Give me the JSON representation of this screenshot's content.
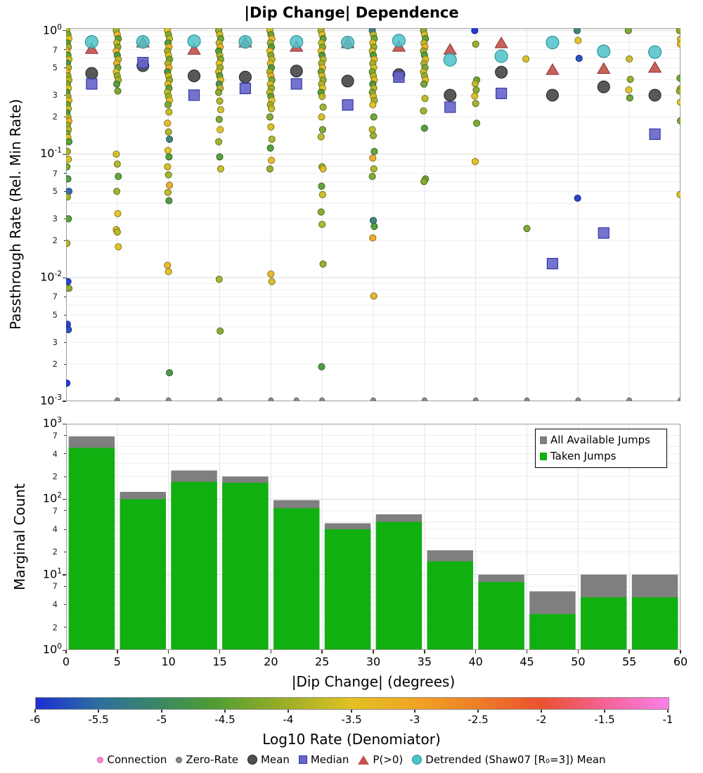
{
  "title": "|Dip Change| Dependence",
  "chart_data": [
    {
      "type": "scatter",
      "title": "|Dip Change| Dependence",
      "ylabel": "Passthrough Rate (Rel. Min Rate)",
      "xlabel": "",
      "xlim": [
        0,
        60
      ],
      "ylog": true,
      "ylim": [
        0.001,
        1.0
      ],
      "x_grid_step": 5,
      "y_major_exponents": [
        0,
        -1,
        -2,
        -3
      ],
      "y_minor_tick_labels": [
        7,
        5,
        3,
        2
      ],
      "marker_colors": {
        "mean": "#4f4f4f",
        "mean_edge": "#1f1f1f",
        "median": "#6565cb",
        "median_edge": "#3737a3",
        "p_gt0": "#c3524e",
        "p_gt0_edge": "#8e2f2c",
        "detrended": "#4ec2c9",
        "detrended_edge": "#2b8f96",
        "zero_rate": "#8a8a8a",
        "zero_rate_edge": "#555555"
      },
      "series": {
        "connections": [
          {
            "x": 0,
            "y": [
              1.0,
              0.927,
              0.859,
              0.794,
              0.736,
              0.682,
              0.631,
              0.585,
              0.542,
              0.501,
              0.464,
              0.43,
              0.398,
              0.369,
              0.342,
              0.316,
              0.293,
              0.272,
              0.251,
              0.233,
              0.216,
              0.2,
              0.185,
              0.171,
              0.158,
              0.147,
              0.136,
              0.126,
              0.105,
              0.091,
              0.079,
              0.063,
              0.05,
              0.045,
              0.03,
              0.019,
              0.0093,
              0.0082,
              0.0042,
              0.0038,
              0.0014
            ],
            "c": [
              -3.8,
              -4.3,
              -3.5,
              -4.6,
              -4.0,
              -3.3,
              -4.5,
              -3.7,
              -4.8,
              -3.9,
              -3.2,
              -4.1,
              -3.8,
              -4.3,
              -3.5,
              -4.6,
              -4.0,
              -3.3,
              -4.5,
              -3.7,
              -4.8,
              -3.9,
              -3.2,
              -4.1,
              -3.8,
              -4.3,
              -3.5,
              -4.6,
              -4.0,
              -3.6,
              -4.4,
              -4.7,
              -5.6,
              -4.0,
              -4.6,
              -3.9,
              -5.9,
              -4.2,
              -5.9,
              -5.8,
              -6.0
            ]
          },
          {
            "x": 5,
            "y": [
              1.0,
              0.927,
              0.859,
              0.794,
              0.736,
              0.682,
              0.631,
              0.585,
              0.542,
              0.501,
              0.464,
              0.43,
              0.398,
              0.369,
              0.324,
              0.1,
              0.083,
              0.066,
              0.05,
              0.033,
              0.0245,
              0.0234,
              0.0178
            ],
            "c": [
              -4.0,
              -3.4,
              -4.5,
              -3.7,
              -4.2,
              -3.3,
              -4.7,
              -3.8,
              -3.2,
              -4.4,
              -3.6,
              -4.1,
              -3.9,
              -4.6,
              -4.3,
              -3.6,
              -3.9,
              -4.5,
              -4.0,
              -3.5,
              -3.6,
              -3.8,
              -3.5
            ]
          },
          {
            "x": 10,
            "y": [
              1.0,
              0.927,
              0.859,
              0.794,
              0.736,
              0.682,
              0.631,
              0.585,
              0.542,
              0.501,
              0.464,
              0.43,
              0.398,
              0.369,
              0.342,
              0.316,
              0.293,
              0.272,
              0.251,
              0.219,
              0.178,
              0.151,
              0.132,
              0.107,
              0.095,
              0.079,
              0.068,
              0.056,
              0.049,
              0.042,
              0.0126,
              0.0112,
              0.0017
            ],
            "c": [
              -3.5,
              -4.2,
              -3.8,
              -4.6,
              -3.3,
              -4.0,
              -3.6,
              -4.4,
              -3.9,
              -3.2,
              -4.7,
              -3.7,
              -4.1,
              -3.4,
              -4.5,
              -3.8,
              -4.0,
              -3.5,
              -4.3,
              -3.7,
              -3.4,
              -3.9,
              -5.2,
              -3.5,
              -4.6,
              -3.6,
              -4.0,
              -3.1,
              -3.8,
              -4.7,
              -3.3,
              -3.5,
              -4.8
            ]
          },
          {
            "x": 15,
            "y": [
              1.0,
              0.927,
              0.859,
              0.794,
              0.736,
              0.682,
              0.631,
              0.585,
              0.542,
              0.501,
              0.464,
              0.43,
              0.398,
              0.369,
              0.342,
              0.316,
              0.269,
              0.229,
              0.191,
              0.158,
              0.126,
              0.095,
              0.076,
              0.0097,
              0.0037
            ],
            "c": [
              -4.1,
              -3.6,
              -4.4,
              -3.8,
              -3.3,
              -4.6,
              -3.9,
              -4.2,
              -3.5,
              -4.0,
              -3.7,
              -4.5,
              -3.4,
              -4.8,
              -3.8,
              -4.2,
              -3.9,
              -3.6,
              -4.3,
              -3.5,
              -4.0,
              -4.6,
              -3.7,
              -4.0,
              -4.2
            ]
          },
          {
            "x": 20,
            "y": [
              1.0,
              0.927,
              0.859,
              0.794,
              0.736,
              0.682,
              0.631,
              0.585,
              0.542,
              0.501,
              0.464,
              0.43,
              0.398,
              0.369,
              0.342,
              0.316,
              0.293,
              0.272,
              0.251,
              0.233,
              0.2,
              0.166,
              0.132,
              0.112,
              0.089,
              0.076,
              0.0107,
              0.0093
            ],
            "c": [
              -3.7,
              -4.4,
              -3.3,
              -4.0,
              -4.6,
              -3.5,
              -4.2,
              -3.8,
              -3.4,
              -4.7,
              -3.9,
              -3.2,
              -4.3,
              -3.6,
              -4.1,
              -3.8,
              -4.5,
              -3.5,
              -4.0,
              -3.7,
              -4.3,
              -3.6,
              -3.9,
              -4.6,
              -3.4,
              -4.1,
              -3.3,
              -3.6
            ]
          },
          {
            "x": 25,
            "y": [
              1.0,
              0.927,
              0.859,
              0.794,
              0.736,
              0.682,
              0.631,
              0.585,
              0.542,
              0.501,
              0.464,
              0.43,
              0.398,
              0.369,
              0.342,
              0.316,
              0.293,
              0.24,
              0.2,
              0.158,
              0.138,
              0.079,
              0.076,
              0.055,
              0.047,
              0.034,
              0.027,
              0.0129,
              0.0019
            ],
            "c": [
              -3.9,
              -3.4,
              -4.5,
              -3.7,
              -4.2,
              -3.5,
              -4.7,
              -3.8,
              -4.0,
              -3.3,
              -4.4,
              -3.6,
              -4.1,
              -3.9,
              -3.5,
              -4.6,
              -3.8,
              -4.0,
              -3.6,
              -4.3,
              -3.8,
              -4.1,
              -3.4,
              -4.5,
              -3.7,
              -4.2,
              -3.9,
              -4.1,
              -4.7
            ]
          },
          {
            "x": 30,
            "y": [
              1.0,
              0.927,
              0.859,
              0.794,
              0.736,
              0.682,
              0.631,
              0.585,
              0.542,
              0.501,
              0.464,
              0.43,
              0.398,
              0.369,
              0.342,
              0.316,
              0.293,
              0.272,
              0.251,
              0.2,
              0.158,
              0.141,
              0.105,
              0.093,
              0.076,
              0.066,
              0.029,
              0.026,
              0.021,
              0.0071
            ],
            "c": [
              -5.3,
              -3.8,
              -4.4,
              -3.5,
              -4.1,
              -3.7,
              -4.6,
              -3.3,
              -4.0,
              -3.6,
              -4.3,
              -3.9,
              -3.4,
              -4.7,
              -3.8,
              -4.2,
              -3.6,
              -4.0,
              -3.5,
              -4.4,
              -3.8,
              -4.1,
              -4.5,
              -3.1,
              -3.9,
              -4.3,
              -5.2,
              -4.6,
              -3.1,
              -3.2
            ]
          },
          {
            "x": 35,
            "y": [
              1.0,
              0.927,
              0.859,
              0.794,
              0.736,
              0.682,
              0.631,
              0.585,
              0.542,
              0.501,
              0.464,
              0.43,
              0.398,
              0.369,
              0.282,
              0.224,
              0.162,
              0.063,
              0.06
            ],
            "c": [
              -4.2,
              -3.6,
              -4.5,
              -3.8,
              -3.3,
              -4.0,
              -4.6,
              -3.5,
              -3.9,
              -4.3,
              -3.7,
              -4.1,
              -3.4,
              -4.4,
              -3.8,
              -4.0,
              -4.6,
              -4.4,
              -4.2
            ]
          },
          {
            "x": 40,
            "y": [
              1.0,
              0.776,
              0.398,
              0.372,
              0.331,
              0.295,
              0.257,
              0.178,
              0.087
            ],
            "c": [
              -6.0,
              -4.1,
              -4.4,
              -3.8,
              -4.2,
              -3.6,
              -4.0,
              -4.3,
              -3.5
            ]
          },
          {
            "x": 45,
            "y": [
              0.589,
              0.025
            ],
            "c": [
              -3.6,
              -4.3
            ]
          },
          {
            "x": 50,
            "y": [
              1.0,
              0.832,
              0.596,
              0.044
            ],
            "c": [
              -5.2,
              -3.5,
              -5.8,
              -5.9
            ]
          },
          {
            "x": 55,
            "y": [
              1.0,
              0.589,
              0.403,
              0.331,
              0.285
            ],
            "c": [
              -4.3,
              -3.7,
              -4.1,
              -3.5,
              -4.4
            ]
          },
          {
            "x": 60,
            "y": [
              1.0,
              0.851,
              0.776,
              0.412,
              0.339,
              0.324,
              0.263,
              0.186,
              0.047
            ],
            "c": [
              -4.2,
              -3.6,
              -3.3,
              -4.4,
              -3.8,
              -4.1,
              -3.5,
              -4.3,
              -3.6
            ]
          }
        ],
        "zero_rate": {
          "x": [
            5,
            10,
            15,
            20,
            22.5,
            25,
            30,
            35,
            40,
            45,
            50,
            55,
            60
          ],
          "y": 0.001
        },
        "mean": [
          [
            2.5,
            0.45
          ],
          [
            7.5,
            0.52
          ],
          [
            12.5,
            0.43
          ],
          [
            17.5,
            0.42
          ],
          [
            22.5,
            0.47
          ],
          [
            27.5,
            0.39
          ],
          [
            32.5,
            0.44
          ],
          [
            37.5,
            0.3
          ],
          [
            42.5,
            0.46
          ],
          [
            47.5,
            0.3
          ],
          [
            52.5,
            0.35
          ],
          [
            57.5,
            0.3
          ]
        ],
        "median": [
          [
            2.5,
            0.37
          ],
          [
            7.5,
            0.55
          ],
          [
            12.5,
            0.3
          ],
          [
            17.5,
            0.34
          ],
          [
            22.5,
            0.37
          ],
          [
            27.5,
            0.25
          ],
          [
            32.5,
            0.42
          ],
          [
            37.5,
            0.24
          ],
          [
            42.5,
            0.31
          ],
          [
            47.5,
            0.013
          ],
          [
            52.5,
            0.023
          ],
          [
            57.5,
            0.145
          ]
        ],
        "p_gt0": [
          [
            2.5,
            0.71
          ],
          [
            7.5,
            0.8
          ],
          [
            12.5,
            0.7
          ],
          [
            17.5,
            0.8
          ],
          [
            22.5,
            0.74
          ],
          [
            27.5,
            0.79
          ],
          [
            32.5,
            0.74
          ],
          [
            37.5,
            0.7
          ],
          [
            42.5,
            0.79
          ],
          [
            47.5,
            0.48
          ],
          [
            52.5,
            0.49
          ],
          [
            57.5,
            0.5
          ]
        ],
        "detrended": [
          [
            2.5,
            0.81
          ],
          [
            7.5,
            0.81
          ],
          [
            12.5,
            0.82
          ],
          [
            17.5,
            0.81
          ],
          [
            22.5,
            0.81
          ],
          [
            27.5,
            0.8
          ],
          [
            32.5,
            0.83
          ],
          [
            37.5,
            0.58
          ],
          [
            42.5,
            0.62
          ],
          [
            47.5,
            0.8
          ],
          [
            52.5,
            0.68
          ],
          [
            57.5,
            0.67
          ]
        ]
      }
    },
    {
      "type": "bar",
      "ylabel": "Marginal Count",
      "xlabel": "|Dip Change| (degrees)",
      "ylog": true,
      "ylim": [
        1,
        1000
      ],
      "bin_edges": [
        0,
        5,
        10,
        15,
        20,
        25,
        30,
        35,
        40,
        45,
        50,
        55,
        60
      ],
      "x_ticks": [
        0,
        5,
        10,
        15,
        20,
        25,
        30,
        35,
        40,
        45,
        50,
        55,
        60
      ],
      "y_major_exponents": [
        3,
        2,
        1,
        0
      ],
      "y_minor_tick_labels": [
        7,
        4,
        2
      ],
      "legend_position": "upper right",
      "series": [
        {
          "name": "All Available Jumps",
          "color": "#7f7f7f",
          "values": [
            680,
            125,
            240,
            200,
            97,
            48,
            63,
            21,
            10,
            6,
            10,
            10
          ]
        },
        {
          "name": "Taken Jumps",
          "color": "#10b010",
          "values": [
            480,
            100,
            170,
            165,
            76,
            40,
            50,
            15,
            8,
            3,
            5,
            5
          ]
        }
      ]
    }
  ],
  "colorbar": {
    "label": "Log10 Rate (Denomiator)",
    "ticks": [
      -6,
      -5.5,
      -5,
      -4.5,
      -4,
      -3.5,
      -3,
      -2.5,
      -2,
      -1.5,
      -1
    ],
    "range": [
      -6,
      -1
    ],
    "stops": [
      [
        -6,
        "#1c2fd4"
      ],
      [
        -5.5,
        "#2e6f9e"
      ],
      [
        -5,
        "#3a8a60"
      ],
      [
        -4.6,
        "#4f9c33"
      ],
      [
        -4,
        "#9fb027"
      ],
      [
        -3.5,
        "#e2c122"
      ],
      [
        -3,
        "#f0a424"
      ],
      [
        -2.5,
        "#ee7d28"
      ],
      [
        -2,
        "#ea512f"
      ],
      [
        -1.5,
        "#f56397"
      ],
      [
        -1,
        "#fb80e8"
      ]
    ]
  },
  "bottom_legend": {
    "items": [
      {
        "label": "Connection",
        "color": "#fd8ad8"
      },
      {
        "label": "Zero-Rate",
        "color": "#8a8a8a"
      },
      {
        "label": "Mean",
        "color": "#4f4f4f"
      },
      {
        "label": "Median",
        "color": "#6565cb"
      },
      {
        "label": "P(>0)",
        "color": "#c3524e"
      },
      {
        "label": "Detrended (Shaw07 [R₀=3]) Mean",
        "color": "#4ec2c9"
      }
    ]
  }
}
